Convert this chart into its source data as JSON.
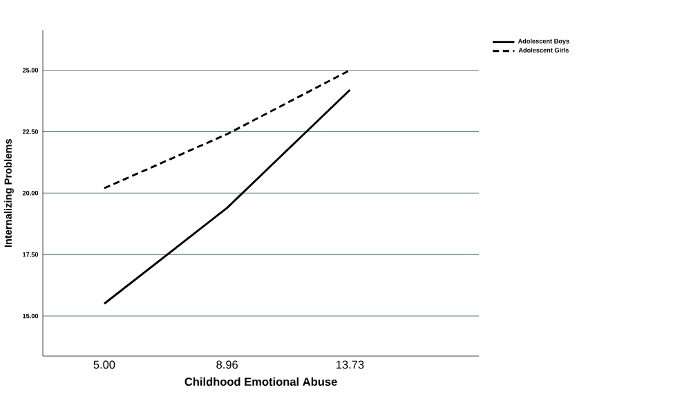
{
  "chart_data": {
    "type": "line",
    "xlabel": "Childhood Emotional Abuse",
    "ylabel": "Internalizing Problems",
    "categories": [
      "5.00",
      "8.96",
      "13.73"
    ],
    "series": [
      {
        "name": "Adolescent Boys",
        "color": "#000000",
        "values": [
          15.5,
          19.4,
          24.2
        ],
        "line_style": "solid"
      },
      {
        "name": "Adolescent Girls",
        "color": "#000000",
        "values": [
          20.2,
          22.4,
          25.0
        ],
        "line_style": "dashed"
      }
    ],
    "ylim": [
      13.37,
      26.63
    ],
    "yticks": [
      {
        "value": 15,
        "label": "15.00"
      },
      {
        "value": 17.5,
        "label": "17.50"
      },
      {
        "value": 20,
        "label": "20.00"
      },
      {
        "value": 22.5,
        "label": "22.50"
      },
      {
        "value": 25,
        "label": "25.00"
      }
    ],
    "grid": "y",
    "legend": "top right",
    "marker": "none"
  }
}
